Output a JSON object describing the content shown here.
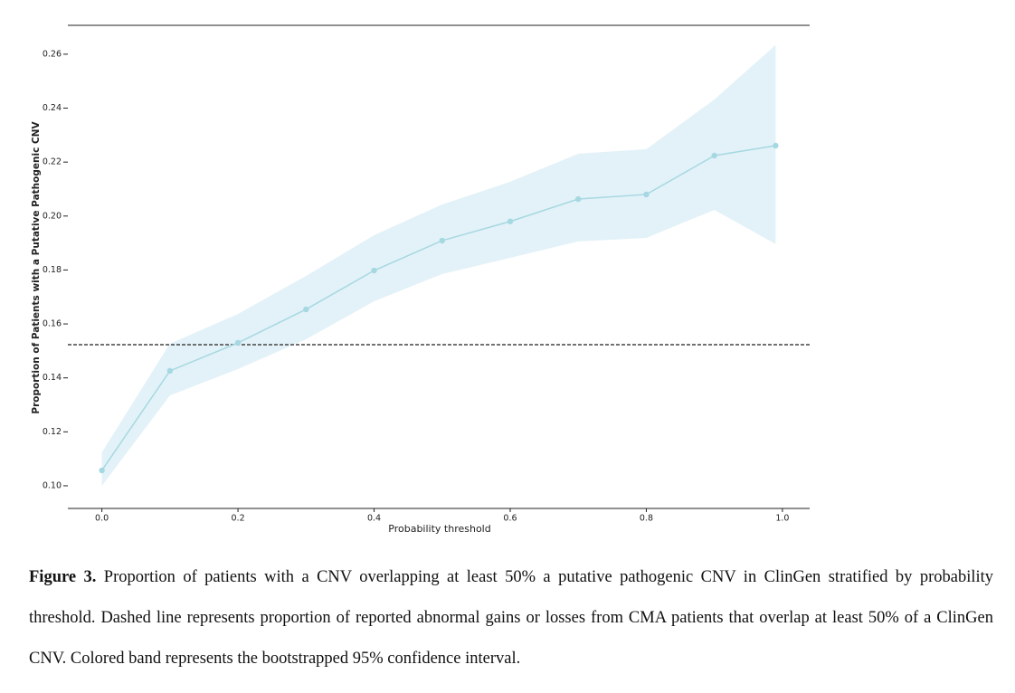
{
  "chart_data": {
    "type": "line",
    "x_label": "Probability threshold",
    "y_label": "Proportion of Patients with a Putative Pathogenic CNV",
    "x": [
      0.0,
      0.1,
      0.2,
      0.3,
      0.4,
      0.5,
      0.6,
      0.7,
      0.8,
      0.9,
      0.99
    ],
    "series": [
      {
        "color": "#a6d8e2",
        "band_color": "#e3f2f8",
        "values": [
          0.1057,
          0.1426,
          0.153,
          0.1654,
          0.1798,
          0.1909,
          0.198,
          0.2063,
          0.208,
          0.2224,
          0.2261
        ],
        "ci_upper": [
          0.1124,
          0.1527,
          0.1637,
          0.1778,
          0.1929,
          0.2043,
          0.2127,
          0.2231,
          0.2248,
          0.2432,
          0.2634
        ],
        "ci_lower": [
          0.1,
          0.1335,
          0.1433,
          0.1543,
          0.1684,
          0.1785,
          0.1845,
          0.1906,
          0.1919,
          0.2023,
          0.1896
        ]
      }
    ],
    "hline": {
      "value": 0.1523,
      "color": "#444444",
      "style": "dashed"
    },
    "xlim": [
      -0.05,
      1.04
    ],
    "ylim": [
      0.0916,
      0.2707
    ],
    "xticks": [
      {
        "value": 0,
        "label": "0.0"
      },
      0.2,
      0.4,
      0.6,
      0.8,
      {
        "value": 1,
        "label": "1.0"
      }
    ],
    "yticks": [
      {
        "value": 0.1,
        "label": "0.10"
      },
      0.12,
      0.14,
      0.16,
      0.18,
      {
        "value": 0.2,
        "label": "0.20"
      },
      0.22,
      0.24,
      0.26
    ]
  },
  "caption": {
    "label": "Figure 3.",
    "text": "Proportion of patients with a CNV overlapping at least 50% a putative pathogenic CNV in ClinGen stratified by probability threshold. Dashed line represents proportion of reported abnormal gains or losses from CMA patients that overlap at least 50% of a ClinGen CNV. Colored band represents the bootstrapped 95% confidence interval."
  }
}
